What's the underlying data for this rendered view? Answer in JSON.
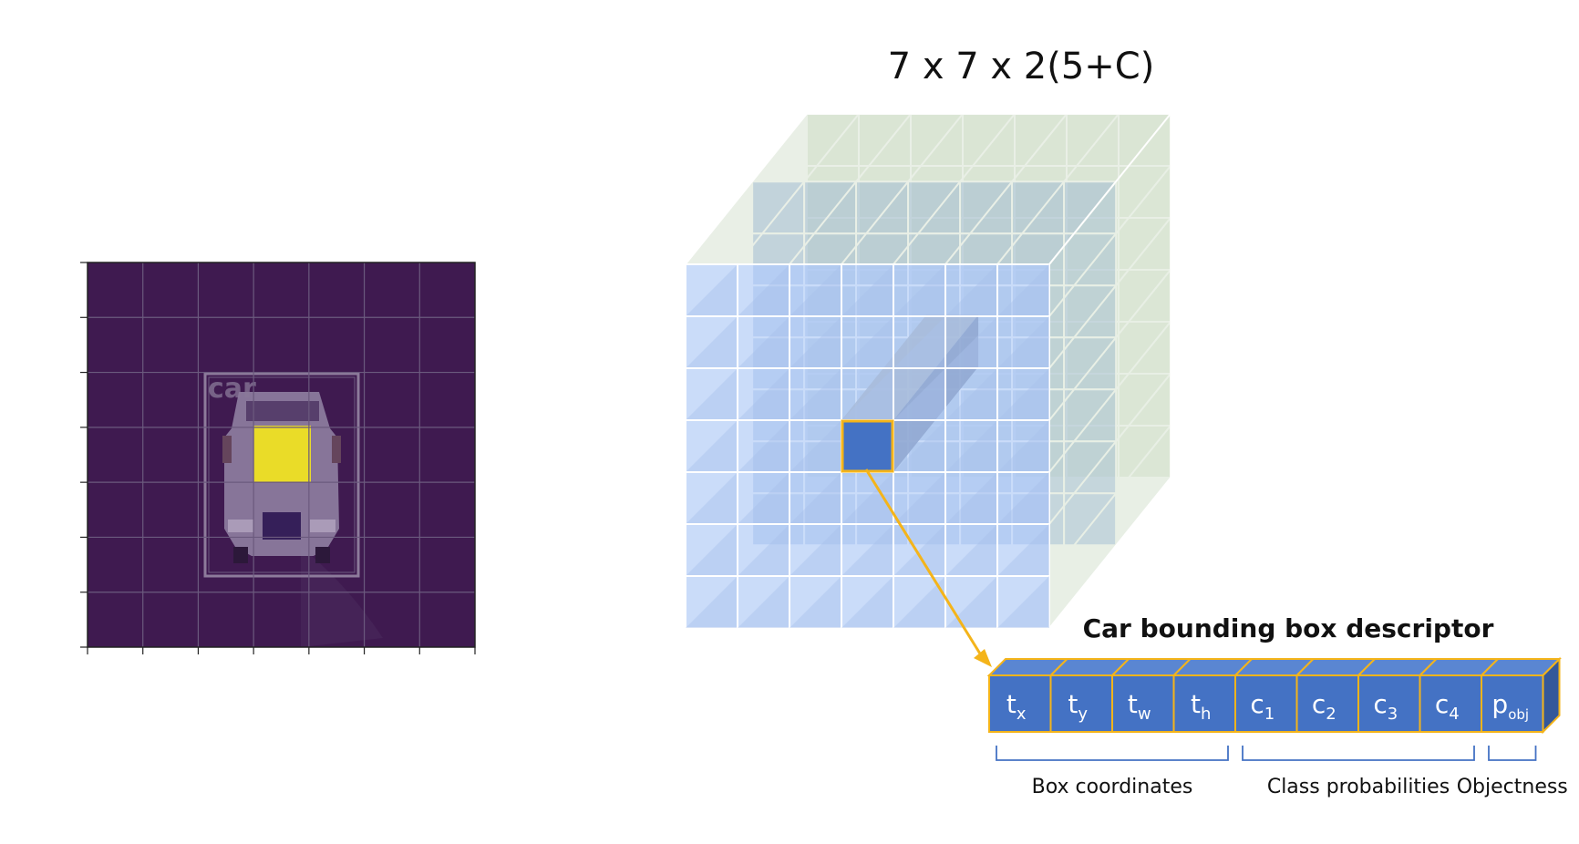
{
  "title": "7 x 7 x 2(5+C)",
  "image_panel": {
    "label": "car",
    "grid_rows": 7,
    "grid_cols": 7
  },
  "tensor": {
    "rows": 7,
    "cols": 7,
    "highlight_row": 3,
    "highlight_col": 3
  },
  "descriptor": {
    "heading": "Car bounding box descriptor",
    "cells": [
      {
        "main": "t",
        "sub": "x"
      },
      {
        "main": "t",
        "sub": "y"
      },
      {
        "main": "t",
        "sub": "w"
      },
      {
        "main": "t",
        "sub": "h"
      },
      {
        "main": "c",
        "sub": "1"
      },
      {
        "main": "c",
        "sub": "2"
      },
      {
        "main": "c",
        "sub": "3"
      },
      {
        "main": "c",
        "sub": "4"
      },
      {
        "main": "p",
        "sub": "obj"
      }
    ],
    "groups": [
      {
        "label": "Box coordinates",
        "from": 0,
        "to": 3
      },
      {
        "label": "Class probabilities",
        "from": 4,
        "to": 7
      },
      {
        "label": "Objectness",
        "from": 8,
        "to": 8
      }
    ]
  },
  "colors": {
    "image_bg": "#3f1a50",
    "highlight_yellow": "#f2e51e",
    "front_cell": "#b3cdf6",
    "back_cell": "#dbe7d3",
    "descriptor_cell": "#4472c4",
    "accent_orange": "#f4b41a",
    "brace_blue": "#4472c4"
  }
}
